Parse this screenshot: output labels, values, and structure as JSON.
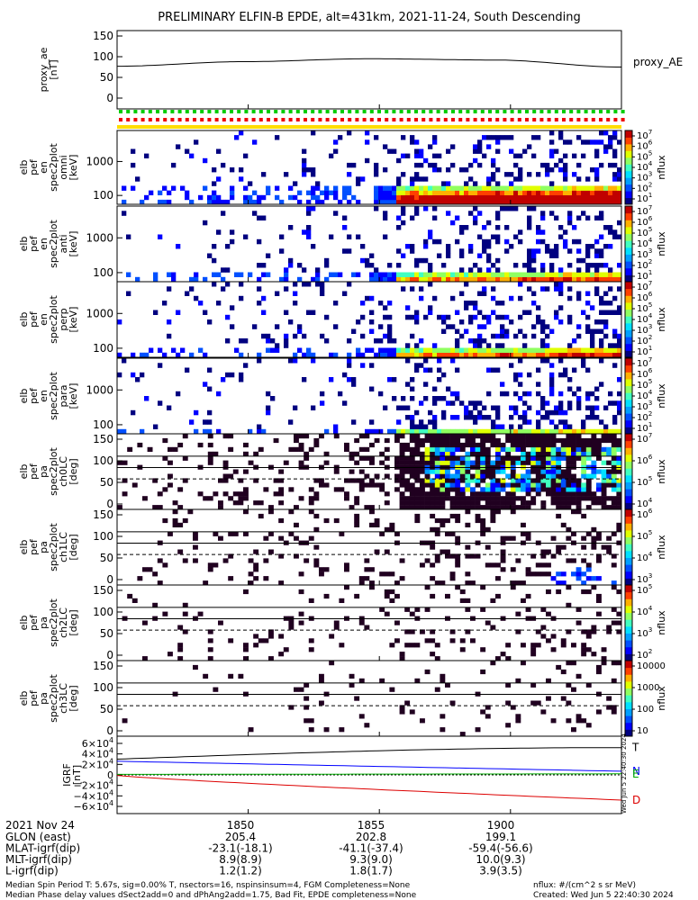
{
  "title": "PRELIMINARY ELFIN-B EPDE, alt=431km, 2021-11-24, South Descending",
  "chart_data": {
    "type": "heatmap",
    "panels": [
      {
        "id": "proxy_ae",
        "kind": "line",
        "ylabel": [
          "proxy_ae",
          "[nT]"
        ],
        "yticks": [
          "150",
          "100",
          "50",
          "0"
        ],
        "legend": "proxy_AE",
        "x": [
          0,
          0.25,
          0.5,
          0.75,
          1.0
        ],
        "y": [
          77,
          88,
          95,
          92,
          75
        ]
      },
      {
        "id": "quality",
        "kind": "flags",
        "rows": [
          "green-dotted",
          "red-dotted",
          "yellow-solid"
        ]
      },
      {
        "id": "omni",
        "kind": "spectrogram",
        "ylabel": [
          "elb",
          "pef",
          "en",
          "spec2plot",
          "omni",
          "[keV]"
        ],
        "yticks": [
          "1000",
          "100"
        ],
        "cbar_ticks": [
          "10^7",
          "10^6",
          "10^5",
          "10^4",
          "10^3",
          "10^2",
          "10^1"
        ],
        "cbar_label": "nflux"
      },
      {
        "id": "anti",
        "kind": "spectrogram",
        "ylabel": [
          "elb",
          "pef",
          "en",
          "spec2plot",
          "anti",
          "[keV]"
        ],
        "yticks": [
          "1000",
          "100"
        ],
        "cbar_ticks": [
          "10^7",
          "10^6",
          "10^5",
          "10^4",
          "10^3",
          "10^2",
          "10^1"
        ],
        "cbar_label": "nflux"
      },
      {
        "id": "perp",
        "kind": "spectrogram",
        "ylabel": [
          "elb",
          "pef",
          "en",
          "spec2plot",
          "perp",
          "[keV]"
        ],
        "yticks": [
          "1000",
          "100"
        ],
        "cbar_ticks": [
          "10^7",
          "10^6",
          "10^5",
          "10^4",
          "10^3",
          "10^2",
          "10^1"
        ],
        "cbar_label": "nflux"
      },
      {
        "id": "para",
        "kind": "spectrogram",
        "ylabel": [
          "elb",
          "pef",
          "en",
          "spec2plot",
          "para",
          "[keV]"
        ],
        "yticks": [
          "1000",
          "100"
        ],
        "cbar_ticks": [
          "10^7",
          "10^6",
          "10^5",
          "10^4",
          "10^3",
          "10^2",
          "10^1"
        ],
        "cbar_label": "nflux"
      },
      {
        "id": "ch0LC",
        "kind": "pitchangle",
        "ylabel": [
          "elb",
          "pef",
          "pa",
          "spec2plot",
          "ch0LC",
          "[deg]"
        ],
        "yticks": [
          "150",
          "100",
          "50",
          "0"
        ],
        "cbar_ticks": [
          "10^7",
          "10^6",
          "10^5",
          "10^4"
        ],
        "cbar_label": "nflux"
      },
      {
        "id": "ch1LC",
        "kind": "pitchangle",
        "ylabel": [
          "elb",
          "pef",
          "pa",
          "spec2plot",
          "ch1LC",
          "[deg]"
        ],
        "yticks": [
          "150",
          "100",
          "50",
          "0"
        ],
        "cbar_ticks": [
          "10^6",
          "10^5",
          "10^4",
          "10^3"
        ],
        "cbar_label": "nflux"
      },
      {
        "id": "ch2LC",
        "kind": "pitchangle",
        "ylabel": [
          "elb",
          "pef",
          "pa",
          "spec2plot",
          "ch2LC",
          "[deg]"
        ],
        "yticks": [
          "150",
          "100",
          "50",
          "0"
        ],
        "cbar_ticks": [
          "10^5",
          "10^4",
          "10^3",
          "10^2"
        ],
        "cbar_label": "nflux"
      },
      {
        "id": "ch3LC",
        "kind": "pitchangle",
        "ylabel": [
          "elb",
          "pef",
          "pa",
          "spec2plot",
          "ch3LC",
          "[deg]"
        ],
        "yticks": [
          "150",
          "100",
          "50",
          "0"
        ],
        "cbar_ticks": [
          "10000",
          "1000",
          "100",
          "10"
        ],
        "cbar_label": "nflux"
      },
      {
        "id": "igrf",
        "kind": "line",
        "ylabel": [
          "IGRF",
          "[nT]"
        ],
        "yticks": [
          "6×10^4",
          "4×10^4",
          "2×10^4",
          "0",
          "−2×10^4",
          "−4×10^4",
          "−6×10^4"
        ],
        "series": [
          {
            "name": "T",
            "color": "#000000",
            "y0": 30000,
            "y1": 52000
          },
          {
            "name": "N",
            "color": "#0000ff",
            "y0": 26000,
            "y1": 7000
          },
          {
            "name": "E",
            "color": "#00aa00",
            "y0": 1000,
            "y1": 2000
          },
          {
            "name": "D",
            "color": "#dd0000",
            "y0": -1000,
            "y1": -48000
          }
        ]
      }
    ]
  },
  "footer": {
    "date_label": "2021 Nov 24",
    "times": [
      "1850",
      "1855",
      "1900"
    ],
    "rows": [
      {
        "label": "GLON (east)",
        "values": [
          "205.4",
          "202.8",
          "199.1"
        ]
      },
      {
        "label": "MLAT-igrf(dip)",
        "values": [
          "-23.1(-18.1)",
          "-41.1(-37.4)",
          "-59.4(-56.6)"
        ]
      },
      {
        "label": "MLT-igrf(dip)",
        "values": [
          "8.9(8.9)",
          "9.3(9.0)",
          "10.0(9.3)"
        ]
      },
      {
        "label": "L-igrf(dip)",
        "values": [
          "1.2(1.2)",
          "1.8(1.7)",
          "3.9(3.5)"
        ]
      }
    ],
    "note1": "Median Spin Period T: 5.67s, sig=0.00% T, nsectors=16, nspinsinsum=4, FGM Completeness=None",
    "note2": "Median Phase delay values dSect2add=0 and dPhAng2add=1.75, Bad Fit, EPDE completeness=None",
    "units": "nflux: #/(cm^2 s sr MeV)",
    "created": "Created: Wed Jun  5 22:40:30 2024",
    "side_stamp": "Wed Jun  5 22:40:30 2024"
  },
  "colors": {
    "background": "#ffffff",
    "axes": "#000000"
  }
}
